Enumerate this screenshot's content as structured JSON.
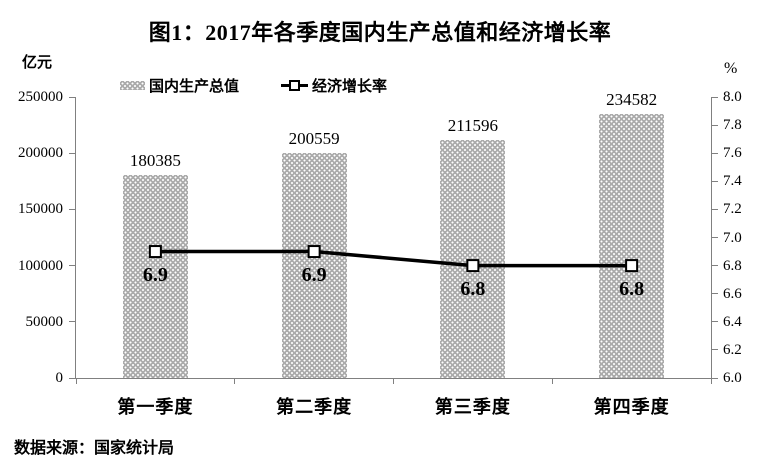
{
  "chart_data": {
    "type": "bar+line",
    "title": "图1：2017年各季度国内生产总值和经济增长率",
    "source": "数据来源：国家统计局",
    "categories": [
      "第一季度",
      "第二季度",
      "第三季度",
      "第四季度"
    ],
    "series": [
      {
        "name": "国内生产总值",
        "type": "bar",
        "axis": "left",
        "values": [
          180385,
          200559,
          211596,
          234582
        ],
        "data_labels": [
          "180385",
          "200559",
          "211596",
          "234582"
        ]
      },
      {
        "name": "经济增长率",
        "type": "line",
        "axis": "right",
        "values": [
          6.9,
          6.9,
          6.8,
          6.8
        ],
        "data_labels": [
          "6.9",
          "6.9",
          "6.8",
          "6.8"
        ]
      }
    ],
    "left_axis": {
      "unit": "亿元",
      "min": 0,
      "max": 250000,
      "step": 50000,
      "tick_labels": [
        "0",
        "50000",
        "100000",
        "150000",
        "200000",
        "250000"
      ]
    },
    "right_axis": {
      "unit": "%",
      "min": 6.0,
      "max": 8.0,
      "step": 0.2,
      "tick_labels": [
        "6.0",
        "6.2",
        "6.4",
        "6.6",
        "6.8",
        "7.0",
        "7.2",
        "7.4",
        "7.6",
        "7.8",
        "8.0"
      ]
    },
    "grid": false,
    "legend_position": "top",
    "plot_background": "#ffffff"
  },
  "colors": {
    "title_text": "#000000",
    "axis_line": "#808080",
    "bar_fill": "#ababab",
    "bar_dot": "#ffffff",
    "line": "#000000",
    "marker_fill": "#ffffff",
    "marker_border": "#000000",
    "text": "#000000"
  }
}
